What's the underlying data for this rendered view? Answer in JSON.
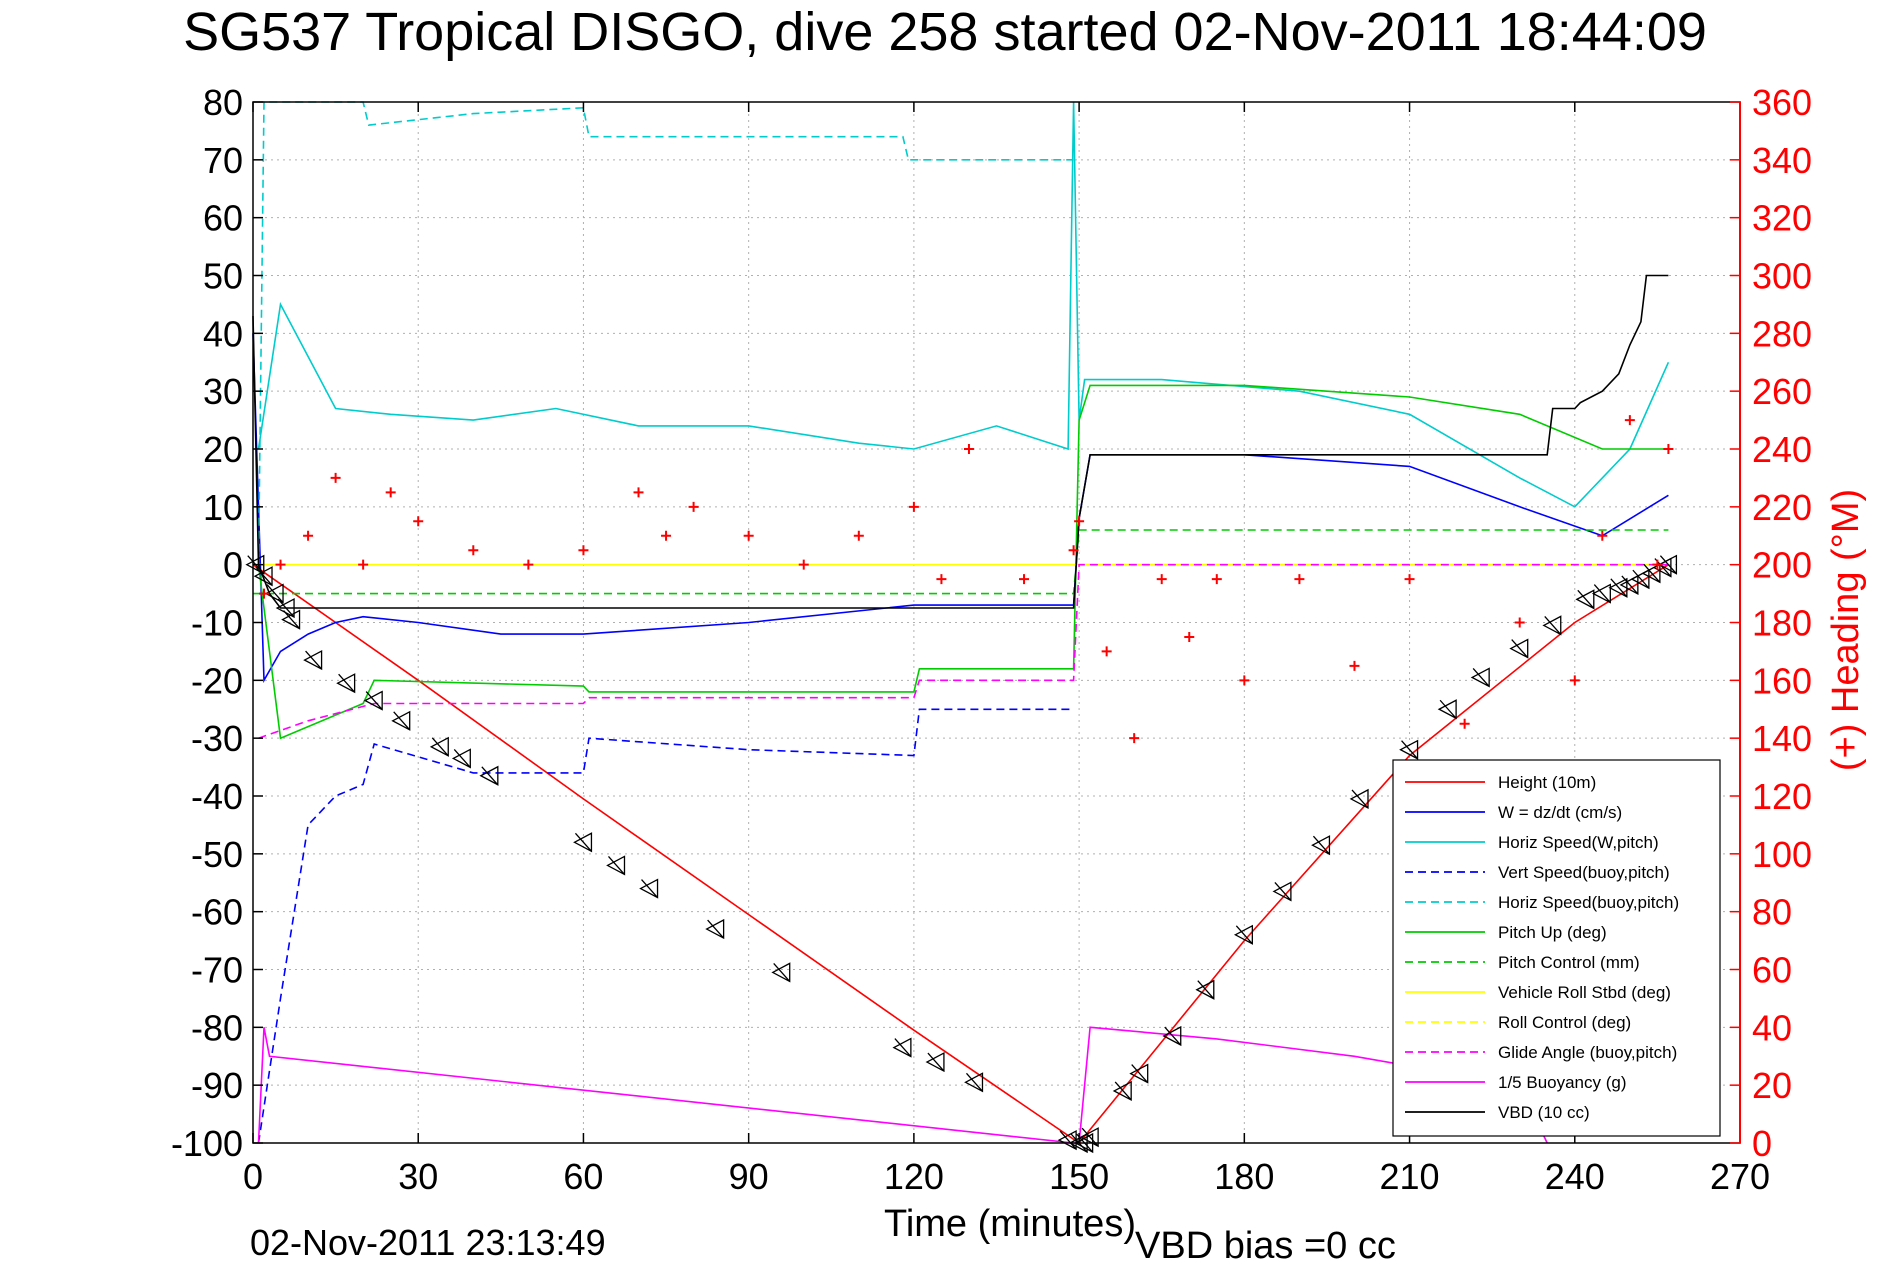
{
  "chart_data": {
    "type": "line",
    "title": "SG537 Tropical DISGO, dive 258 started 02-Nov-2011 18:44:09",
    "xlabel": "Time (minutes)",
    "ylabel_left": "",
    "ylabel_right": "(+) Heading (°M)",
    "footer_left": "02-Nov-2011 23:13:49",
    "footer_right": "VBD bias =0 cc",
    "xlim": [
      0,
      270
    ],
    "ylim": [
      -100,
      80
    ],
    "ylim_right": [
      0,
      360
    ],
    "x_ticks": [
      0,
      30,
      60,
      90,
      120,
      150,
      180,
      210,
      240,
      270
    ],
    "y_ticks": [
      80,
      70,
      60,
      50,
      40,
      30,
      20,
      10,
      0,
      -10,
      -20,
      -30,
      -40,
      -50,
      -60,
      -70,
      -80,
      -90,
      -100
    ],
    "y_ticks_right": [
      360,
      340,
      320,
      300,
      280,
      260,
      240,
      220,
      200,
      180,
      160,
      140,
      120,
      100,
      80,
      60,
      40,
      20,
      0
    ],
    "grid": true,
    "legend_position": "bottom-right",
    "colors": {
      "left_axis": "#000000",
      "right_axis": "#ff0000",
      "grid": "#b0b0b0"
    },
    "series": [
      {
        "name": "Height (10m)",
        "color": "#ff0000",
        "style": "solid",
        "x": [
          0,
          30,
          60,
          90,
          120,
          150,
          180,
          210,
          240,
          257
        ],
        "y": [
          0,
          -20,
          -40.5,
          -60.5,
          -80.5,
          -100,
          -65,
          -33,
          -10,
          0
        ]
      },
      {
        "name": "W = dz/dt (cm/s)",
        "color": "#0000ff",
        "style": "solid",
        "x": [
          0,
          2,
          5,
          10,
          15,
          20,
          30,
          45,
          60,
          90,
          120,
          140,
          149,
          150,
          152,
          180,
          210,
          230,
          245,
          257
        ],
        "y": [
          40,
          -20,
          -15,
          -12,
          -10,
          -9,
          -10,
          -12,
          -12,
          -10,
          -7,
          -7,
          -7,
          8,
          19,
          19,
          17,
          10,
          5,
          12
        ]
      },
      {
        "name": "Horiz Speed(W,pitch)",
        "color": "#00cccc",
        "style": "solid",
        "x": [
          1,
          5,
          15,
          25,
          40,
          55,
          70,
          90,
          110,
          120,
          135,
          148,
          149,
          150,
          151,
          165,
          190,
          210,
          230,
          240,
          250,
          257
        ],
        "y": [
          20,
          45,
          27,
          26,
          25,
          27,
          24,
          24,
          21,
          20,
          24,
          20,
          80,
          25,
          32,
          32,
          30,
          26,
          15,
          10,
          20,
          35
        ]
      },
      {
        "name": "Vert Speed(buoy,pitch)",
        "color": "#0000ff",
        "style": "dashed",
        "x": [
          1,
          5,
          10,
          15,
          20,
          22,
          40,
          60,
          61,
          90,
          120,
          121,
          149
        ],
        "y": [
          -100,
          -75,
          -45,
          -40,
          -38,
          -31,
          -36,
          -36,
          -30,
          -32,
          -33,
          -25,
          -25
        ]
      },
      {
        "name": "Horiz Speed(buoy,pitch)",
        "color": "#00cccc",
        "style": "dashed",
        "x": [
          1,
          2,
          20,
          21,
          40,
          60,
          61,
          90,
          118,
          119,
          149
        ],
        "y": [
          0,
          80,
          80,
          76,
          78,
          79,
          74,
          74,
          74,
          70,
          70
        ]
      },
      {
        "name": "Pitch Up (deg)",
        "color": "#00cc00",
        "style": "solid",
        "x": [
          1,
          5,
          10,
          20,
          22,
          60,
          61,
          120,
          121,
          149,
          150,
          152,
          180,
          210,
          230,
          245,
          257
        ],
        "y": [
          0,
          -30,
          -28,
          -24,
          -20,
          -21,
          -22,
          -22,
          -18,
          -18,
          25,
          31,
          31,
          29,
          26,
          20,
          20
        ]
      },
      {
        "name": "Pitch Control (mm)",
        "color": "#00cc00",
        "style": "dashed",
        "x": [
          0,
          10,
          60,
          149,
          150,
          257
        ],
        "y": [
          -5,
          -5,
          -5,
          -5,
          6,
          6
        ]
      },
      {
        "name": "Vehicle Roll Stbd (deg)",
        "color": "#ffff00",
        "style": "solid",
        "x": [
          0,
          30,
          60,
          90,
          120,
          149,
          150,
          180,
          210,
          240,
          257
        ],
        "y": [
          0,
          0,
          0,
          0,
          0,
          0,
          0,
          0,
          0,
          0,
          0
        ]
      },
      {
        "name": "Roll Control (deg)",
        "color": "#ffff00",
        "style": "dashed",
        "x": [
          0,
          30,
          60,
          90,
          120,
          149,
          150,
          180,
          210,
          240,
          257
        ],
        "y": [
          0,
          0,
          0,
          0,
          0,
          0,
          0,
          0,
          0,
          0,
          0
        ]
      },
      {
        "name": "Glide Angle (buoy,pitch)",
        "color": "#ff00ff",
        "style": "dashed",
        "x": [
          1,
          10,
          22,
          60,
          61,
          120,
          121,
          149,
          150,
          257
        ],
        "y": [
          -30,
          -27,
          -24,
          -24,
          -23,
          -23,
          -20,
          -20,
          0,
          0
        ]
      },
      {
        "name": "1/5 Buoyancy (g)",
        "color": "#ff00ff",
        "style": "solid",
        "x": [
          1,
          2,
          3,
          149,
          150,
          152,
          175,
          200,
          230,
          235
        ],
        "y": [
          -100,
          -80,
          -85,
          -100,
          -100,
          -80,
          -82,
          -85,
          -90,
          -100
        ]
      },
      {
        "name": "VBD (10 cc)",
        "color": "#000000",
        "style": "solid",
        "x": [
          0,
          1,
          3,
          5,
          10,
          30,
          60,
          90,
          120,
          149,
          150,
          152,
          180,
          210,
          235,
          236,
          240,
          241,
          245,
          248,
          250,
          252,
          253,
          257
        ],
        "y": [
          43,
          0,
          -5,
          -7.5,
          -7.5,
          -7.5,
          -7.5,
          -7.5,
          -7.5,
          -7.5,
          8,
          19,
          19,
          19,
          19,
          27,
          27,
          28,
          30,
          33,
          38,
          42,
          50,
          50
        ]
      },
      {
        "name": "Heading",
        "axis": "right",
        "color": "#ff0000",
        "style": "markers",
        "x": [
          2,
          5,
          10,
          15,
          20,
          25,
          30,
          40,
          50,
          60,
          70,
          75,
          80,
          90,
          100,
          110,
          120,
          125,
          130,
          140,
          149,
          150,
          155,
          160,
          165,
          170,
          175,
          180,
          190,
          200,
          210,
          220,
          230,
          240,
          245,
          250,
          255,
          257
        ],
        "y": [
          190,
          200,
          210,
          230,
          200,
          225,
          215,
          205,
          200,
          205,
          225,
          210,
          220,
          210,
          200,
          210,
          220,
          195,
          240,
          195,
          205,
          215,
          170,
          140,
          195,
          175,
          195,
          160,
          195,
          165,
          195,
          145,
          180,
          160,
          210,
          250,
          200,
          240
        ]
      }
    ],
    "markers": {
      "name": "triangles",
      "x": [
        0.5,
        2,
        4,
        6,
        7,
        11,
        17,
        22,
        27,
        34,
        38,
        43,
        60,
        66,
        72,
        84,
        96,
        118,
        124,
        131,
        148,
        150,
        151,
        152,
        158,
        161,
        167,
        173,
        180,
        187,
        194,
        201,
        210,
        217,
        223,
        230,
        236,
        242,
        245,
        248,
        250,
        252,
        254,
        256,
        257
      ],
      "y": [
        0,
        -2,
        -5,
        -7.5,
        -9.5,
        -16.5,
        -20.5,
        -23.5,
        -27,
        -31.5,
        -33.5,
        -36.5,
        -48,
        -52,
        -56,
        -63,
        -70.5,
        -83.5,
        -86,
        -89.5,
        -99.5,
        -100,
        -100,
        -99,
        -91,
        -88,
        -81.5,
        -73.5,
        -64,
        -56.5,
        -48.5,
        -40.5,
        -32,
        -25,
        -19.5,
        -14.5,
        -10.5,
        -6,
        -5,
        -4,
        -3.5,
        -2.5,
        -1.5,
        -0.5,
        0
      ]
    }
  }
}
